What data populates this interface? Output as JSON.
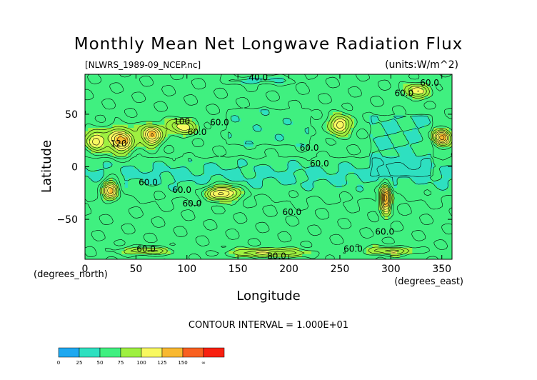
{
  "chart_data": {
    "type": "heatmap",
    "title": "Monthly Mean Net Longwave Radiation Flux",
    "file_label": "[NLWRS_1989-09_NCEP.nc]",
    "units_label": "(units:W/m^2)",
    "xlabel": "Longitude",
    "xunit": "(degrees_east)",
    "ylabel": "Latitude",
    "yunit": "(degrees_north)",
    "xlim": [
      0,
      360
    ],
    "ylim": [
      -88,
      88
    ],
    "x_ticks": [
      0,
      50,
      100,
      150,
      200,
      250,
      300,
      350
    ],
    "y_ticks": [
      50,
      0,
      -50
    ],
    "contour_interval_text": "CONTOUR INTERVAL = 1.000E+01",
    "contour_labels": [
      {
        "text": "40.0",
        "x": 170,
        "y": 85
      },
      {
        "text": "60.0",
        "x": 313,
        "y": 70
      },
      {
        "text": "60.0",
        "x": 338,
        "y": 80
      },
      {
        "text": "100",
        "x": 95,
        "y": 43
      },
      {
        "text": "60.0",
        "x": 132,
        "y": 42
      },
      {
        "text": "60.0",
        "x": 110,
        "y": 33
      },
      {
        "text": "120",
        "x": 33,
        "y": 22
      },
      {
        "text": "60.0",
        "x": 220,
        "y": 18
      },
      {
        "text": "60.0",
        "x": 230,
        "y": 3
      },
      {
        "text": "60.0",
        "x": 62,
        "y": -15
      },
      {
        "text": "60.0",
        "x": 95,
        "y": -22
      },
      {
        "text": "60.0",
        "x": 105,
        "y": -35
      },
      {
        "text": "60.0",
        "x": 203,
        "y": -43
      },
      {
        "text": "60.0",
        "x": 294,
        "y": -62
      },
      {
        "text": "60.0",
        "x": 60,
        "y": -78
      },
      {
        "text": "60.0",
        "x": 263,
        "y": -78
      },
      {
        "text": "80.0",
        "x": 188,
        "y": -85
      }
    ],
    "colorbar": {
      "levels": [
        "0",
        "25",
        "50",
        "75",
        "100",
        "125",
        "150",
        "∞"
      ],
      "colors": [
        "#1ea8f0",
        "#2ee0c0",
        "#40f080",
        "#9ef040",
        "#f8f860",
        "#f8b830",
        "#f86020",
        "#f82010"
      ]
    }
  }
}
